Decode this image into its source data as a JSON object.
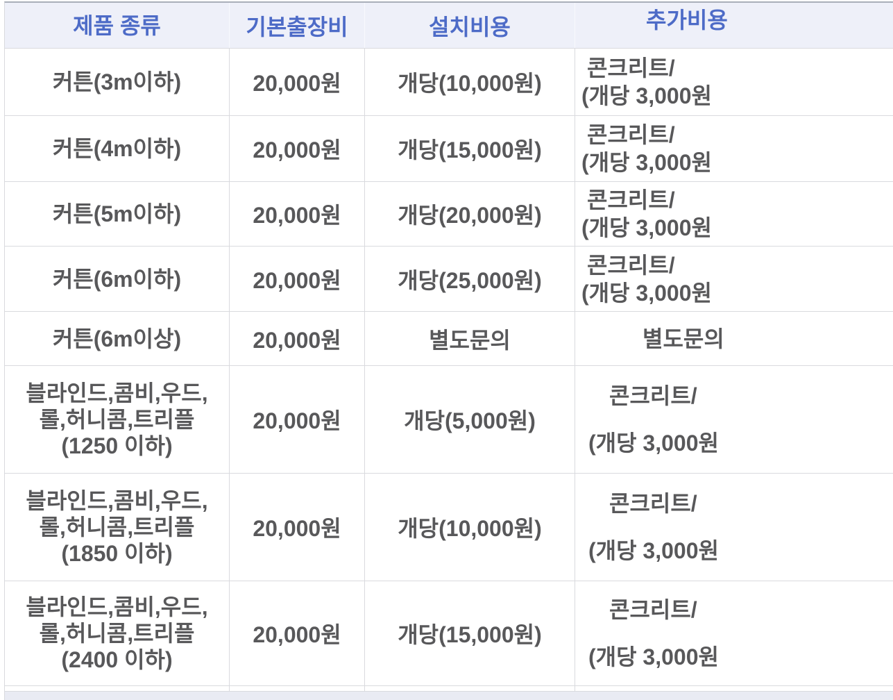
{
  "colors": {
    "header_bg": "#eef0f9",
    "header_text": "#4d6bc7",
    "cell_text": "#58585a",
    "grid_border": "#d9dade",
    "top_border": "#a9aeb9",
    "next_row_bg": "#e9ebf3"
  },
  "table": {
    "headers": {
      "product": "제품 종류",
      "base_fee": "기본출장비",
      "install_cost": "설치비용",
      "extra_cost": "추가비용"
    },
    "rows": [
      {
        "product": "커튼(3m이하)",
        "base_fee": "20,000원",
        "install_cost": "개당(10,000원)",
        "extra_line1": "콘크리트/",
        "extra_line2": "(개당 3,000원"
      },
      {
        "product": "커튼(4m이하)",
        "base_fee": "20,000원",
        "install_cost": "개당(15,000원)",
        "extra_line1": "콘크리트/",
        "extra_line2": "(개당 3,000원"
      },
      {
        "product": "커튼(5m이하)",
        "base_fee": "20,000원",
        "install_cost": "개당(20,000원)",
        "extra_line1": "콘크리트/",
        "extra_line2": "(개당 3,000원"
      },
      {
        "product": "커튼(6m이하)",
        "base_fee": "20,000원",
        "install_cost": "개당(25,000원)",
        "extra_line1": "콘크리트/",
        "extra_line2": "(개당 3,000원"
      },
      {
        "product": "커튼(6m이상)",
        "base_fee": "20,000원",
        "install_cost": "별도문의",
        "extra_single": "별도문의"
      },
      {
        "product_lines": [
          "블라인드,콤비,우드,",
          "롤,허니콤,트리플",
          "(1250 이하)"
        ],
        "base_fee": "20,000원",
        "install_cost": "개당(5,000원)",
        "extra_line1": "콘크리트/",
        "extra_line2": "(개당 3,000원"
      },
      {
        "product_lines": [
          "블라인드,콤비,우드,",
          "롤,허니콤,트리플",
          "(1850 이하)"
        ],
        "base_fee": "20,000원",
        "install_cost": "개당(10,000원)",
        "extra_line1": "콘크리트/",
        "extra_line2": "(개당 3,000원"
      },
      {
        "product_lines": [
          "블라인드,콤비,우드,",
          "롤,허니콤,트리플",
          "(2400 이하)"
        ],
        "base_fee": "20,000원",
        "install_cost": "개당(15,000원)",
        "extra_line1": "콘크리트/",
        "extra_line2": "(개당 3,000원"
      }
    ]
  }
}
